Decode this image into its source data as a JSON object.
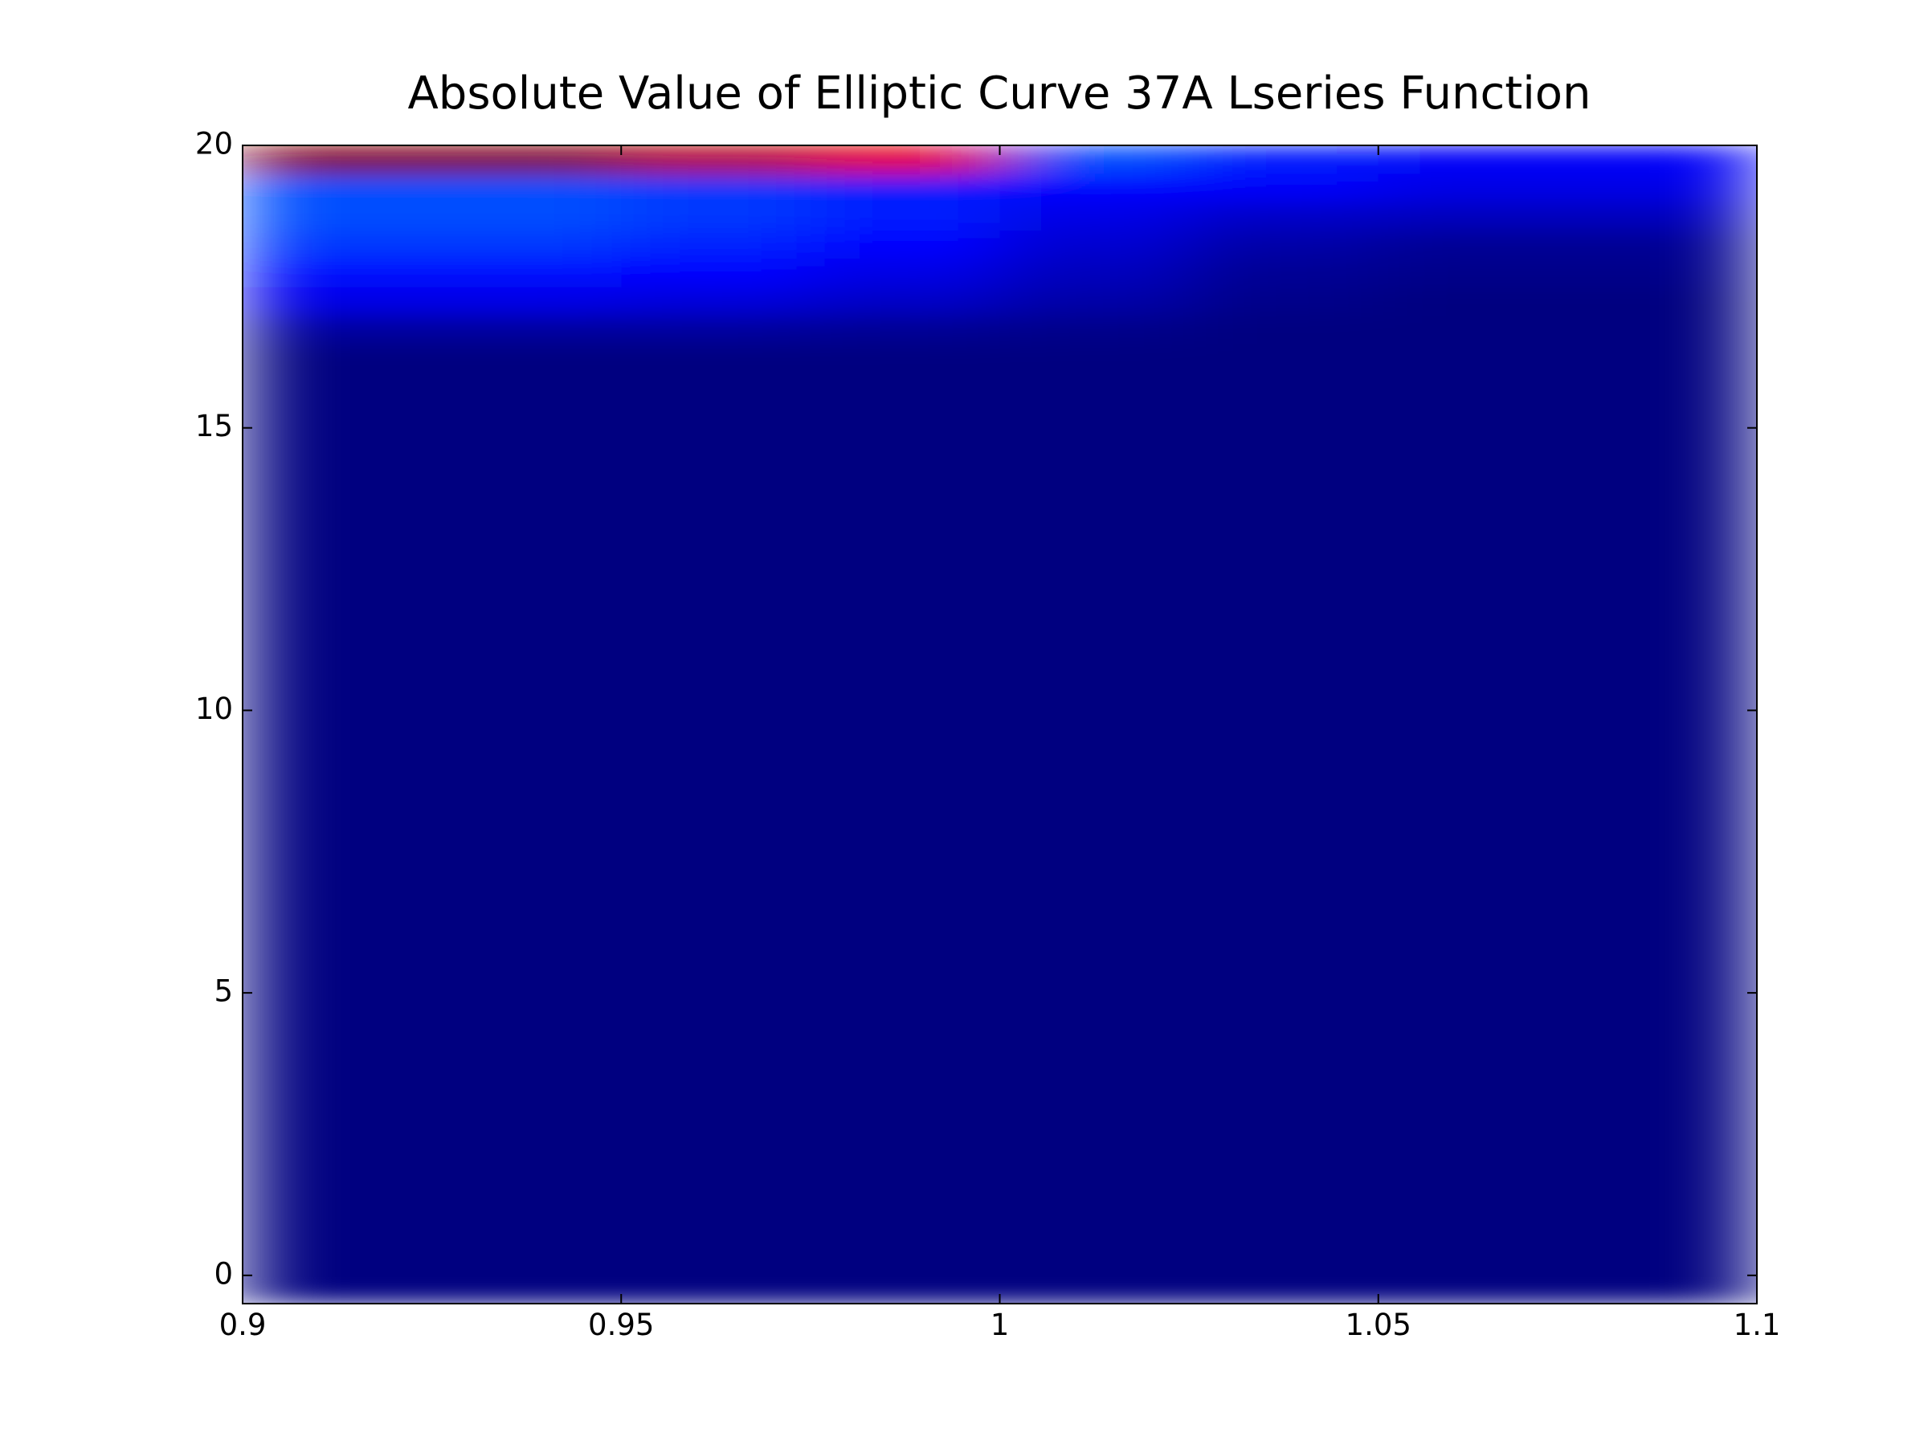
{
  "chart_data": {
    "type": "heatmap",
    "title": "Absolute Value of Elliptic Curve 37A Lseries Function",
    "colormap": "jet",
    "x_edges": [
      0.9,
      0.925,
      0.95,
      0.975,
      1.0,
      1.025,
      1.05,
      1.075,
      1.1
    ],
    "y_edges": [
      -0.5,
      16.5,
      17,
      17.5,
      18,
      18.5,
      19,
      19.5,
      20
    ],
    "z": [
      [
        0,
        0,
        0,
        0,
        0,
        0,
        0,
        0
      ],
      [
        0.03,
        0.03,
        0.03,
        0.02,
        0.01,
        0,
        0,
        0
      ],
      [
        0.1,
        0.1,
        0.09,
        0.07,
        0.04,
        0.01,
        0,
        0
      ],
      [
        0.14,
        0.14,
        0.13,
        0.1,
        0.06,
        0.02,
        0.01,
        0.01
      ],
      [
        0.18,
        0.18,
        0.16,
        0.13,
        0.08,
        0.04,
        0.02,
        0.02
      ],
      [
        0.2,
        0.2,
        0.18,
        0.15,
        0.1,
        0.07,
        0.06,
        0.06
      ],
      [
        0.2,
        0.2,
        0.18,
        0.15,
        0.13,
        0.12,
        0.1,
        0.1
      ],
      [
        1.0,
        1.0,
        0.95,
        0.9,
        0.2,
        0.15,
        0.12,
        0.12
      ]
    ],
    "xlim": [
      0.9,
      1.1
    ],
    "ylim": [
      -0.5,
      20
    ],
    "xticks": [
      0.9,
      0.95,
      1,
      1.05,
      1.1
    ],
    "yticks": [
      0,
      5,
      10,
      15,
      20
    ]
  }
}
